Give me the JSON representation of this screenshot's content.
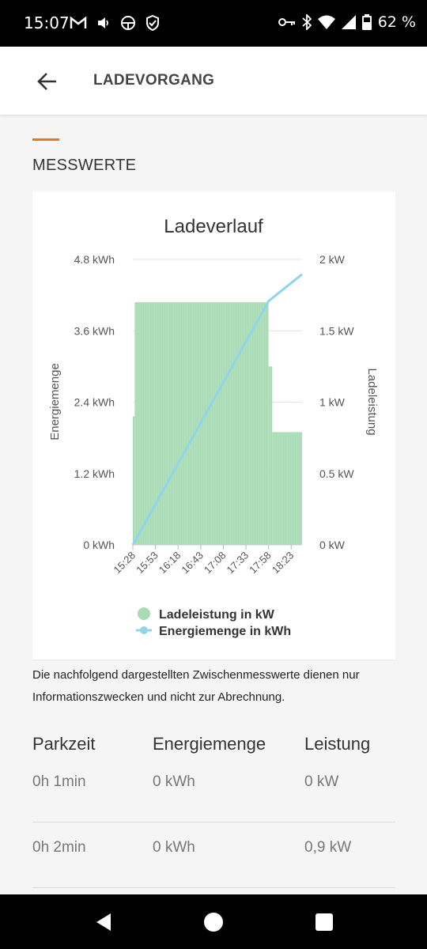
{
  "status_bar": {
    "time": "15:07",
    "battery": "62 %",
    "icons_left": [
      "gmail-icon",
      "volume-icon",
      "steering-icon",
      "shield-icon"
    ],
    "icons_right": [
      "key-icon",
      "bluetooth-icon",
      "wifi-icon",
      "signal-icon",
      "battery-icon"
    ]
  },
  "appbar": {
    "title": "LADEVORGANG"
  },
  "section": {
    "title": "MESSWERTE",
    "accent_color": "#e07a1f"
  },
  "chart_data": {
    "type": "bar",
    "title": "Ladeverlauf",
    "y_left_label": "Energiemenge",
    "y_right_label": "Ladeleistung",
    "y_left_ticks": [
      "0 kWh",
      "1.2 kWh",
      "2.4 kWh",
      "3.6 kWh",
      "4.8 kWh"
    ],
    "y_right_ticks": [
      "0 kW",
      "0.5 kW",
      "1 kW",
      "1.5 kW",
      "2 kW"
    ],
    "x_ticks": [
      "15:28",
      "15:53",
      "16:18",
      "16:43",
      "17:08",
      "17:33",
      "17:58",
      "18:23"
    ],
    "y_left_range": [
      0,
      4.8
    ],
    "y_right_range": [
      0,
      2
    ],
    "series": [
      {
        "name": "Ladeleistung in kW",
        "type": "bar",
        "color": "#a9dcb5",
        "x_minutes": [
          0,
          172,
          172,
          187
        ],
        "segments": [
          {
            "from": "15:28",
            "to": "15:30",
            "value": 0.9
          },
          {
            "from": "15:30",
            "to": "17:58",
            "value": 1.7
          },
          {
            "from": "17:58",
            "to": "18:02",
            "value": 1.25
          },
          {
            "from": "18:02",
            "to": "18:35",
            "value": 0.79
          }
        ]
      },
      {
        "name": "Energiemenge in kWh",
        "type": "line",
        "color": "#8fd6ea",
        "points": [
          {
            "x": "15:28",
            "y": 0
          },
          {
            "x": "17:58",
            "y": 4.1
          },
          {
            "x": "18:35",
            "y": 4.55
          }
        ]
      }
    ],
    "legend": "bottom",
    "grid": true
  },
  "note": "Die nachfolgend dargestellten Zwischenmesswerte dienen nur Informationszwecken und nicht zur Abrechnung.",
  "table": {
    "headers": [
      "Parkzeit",
      "Energiemenge",
      "Leistung"
    ],
    "rows": [
      [
        "0h 1min",
        "0 kWh",
        "0 kW"
      ],
      [
        "0h 2min",
        "0 kWh",
        "0,9 kW"
      ]
    ]
  },
  "nav": {
    "back": "nav-back-icon",
    "home": "nav-home-icon",
    "recents": "nav-recents-icon"
  }
}
